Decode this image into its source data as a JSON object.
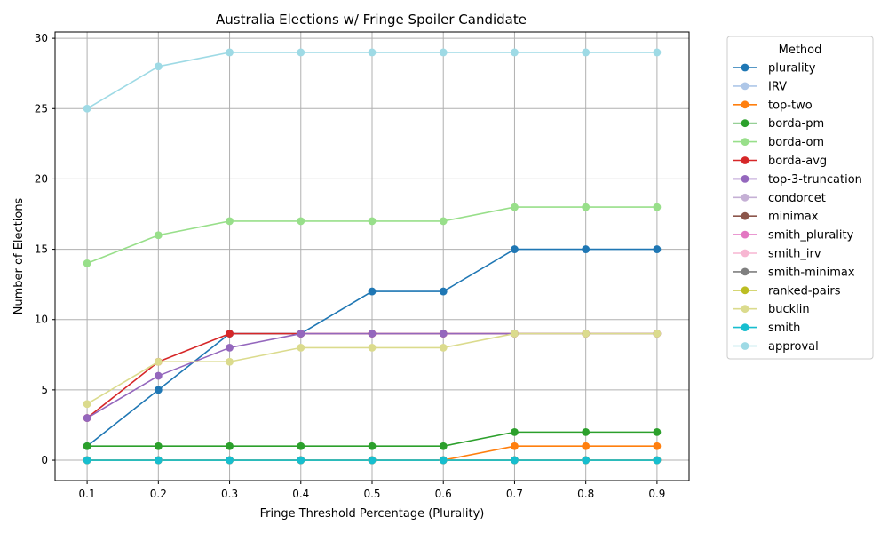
{
  "chart_data": {
    "type": "line",
    "title": "Australia Elections w/ Fringe Spoiler Candidate",
    "xlabel": "Fringe Threshold Percentage (Plurality)",
    "ylabel": "Number of Elections",
    "x": [
      0.1,
      0.2,
      0.3,
      0.4,
      0.5,
      0.6,
      0.7,
      0.8,
      0.9
    ],
    "x_tick_labels": [
      "0.1",
      "0.2",
      "0.3",
      "0.4",
      "0.5",
      "0.6",
      "0.7",
      "0.8",
      "0.9"
    ],
    "xlim": [
      0.055,
      0.945
    ],
    "ylim": [
      -1.45,
      30.45
    ],
    "y_ticks": [
      0,
      5,
      10,
      15,
      20,
      25,
      30
    ],
    "y_tick_labels": [
      "0",
      "5",
      "10",
      "15",
      "20",
      "25",
      "30"
    ],
    "grid": true,
    "legend_title": "Method",
    "legend_position": "outside-right",
    "series": [
      {
        "name": "plurality",
        "color": "#1f77b4",
        "values": [
          1,
          5,
          9,
          9,
          12,
          12,
          15,
          15,
          15
        ]
      },
      {
        "name": "IRV",
        "color": "#aec7e8",
        "values": [
          0,
          0,
          0,
          0,
          0,
          0,
          0,
          0,
          0
        ]
      },
      {
        "name": "top-two",
        "color": "#ff7f0e",
        "values": [
          0,
          0,
          0,
          0,
          0,
          0,
          1,
          1,
          1
        ]
      },
      {
        "name": "borda-pm",
        "color": "#2ca02c",
        "values": [
          1,
          1,
          1,
          1,
          1,
          1,
          2,
          2,
          2
        ]
      },
      {
        "name": "borda-om",
        "color": "#98df8a",
        "values": [
          14,
          16,
          17,
          17,
          17,
          17,
          18,
          18,
          18
        ]
      },
      {
        "name": "borda-avg",
        "color": "#d62728",
        "values": [
          3,
          7,
          9,
          9,
          9,
          9,
          9,
          9,
          9
        ]
      },
      {
        "name": "top-3-truncation",
        "color": "#9467bd",
        "values": [
          3,
          6,
          8,
          9,
          9,
          9,
          9,
          9,
          9
        ]
      },
      {
        "name": "condorcet",
        "color": "#c5b0d5",
        "values": [
          0,
          0,
          0,
          0,
          0,
          0,
          0,
          0,
          0
        ]
      },
      {
        "name": "minimax",
        "color": "#8c564b",
        "values": [
          0,
          0,
          0,
          0,
          0,
          0,
          0,
          0,
          0
        ]
      },
      {
        "name": "smith_plurality",
        "color": "#e377c2",
        "values": [
          0,
          0,
          0,
          0,
          0,
          0,
          0,
          0,
          0
        ]
      },
      {
        "name": "smith_irv",
        "color": "#f7b6d2",
        "values": [
          0,
          0,
          0,
          0,
          0,
          0,
          0,
          0,
          0
        ]
      },
      {
        "name": "smith-minimax",
        "color": "#7f7f7f",
        "values": [
          0,
          0,
          0,
          0,
          0,
          0,
          0,
          0,
          0
        ]
      },
      {
        "name": "ranked-pairs",
        "color": "#bcbd22",
        "values": [
          0,
          0,
          0,
          0,
          0,
          0,
          0,
          0,
          0
        ]
      },
      {
        "name": "bucklin",
        "color": "#dbdb8d",
        "values": [
          4,
          7,
          7,
          8,
          8,
          8,
          9,
          9,
          9
        ]
      },
      {
        "name": "smith",
        "color": "#17becf",
        "values": [
          0,
          0,
          0,
          0,
          0,
          0,
          0,
          0,
          0
        ]
      },
      {
        "name": "approval",
        "color": "#9edae5",
        "values": [
          25,
          28,
          29,
          29,
          29,
          29,
          29,
          29,
          29
        ]
      }
    ]
  }
}
